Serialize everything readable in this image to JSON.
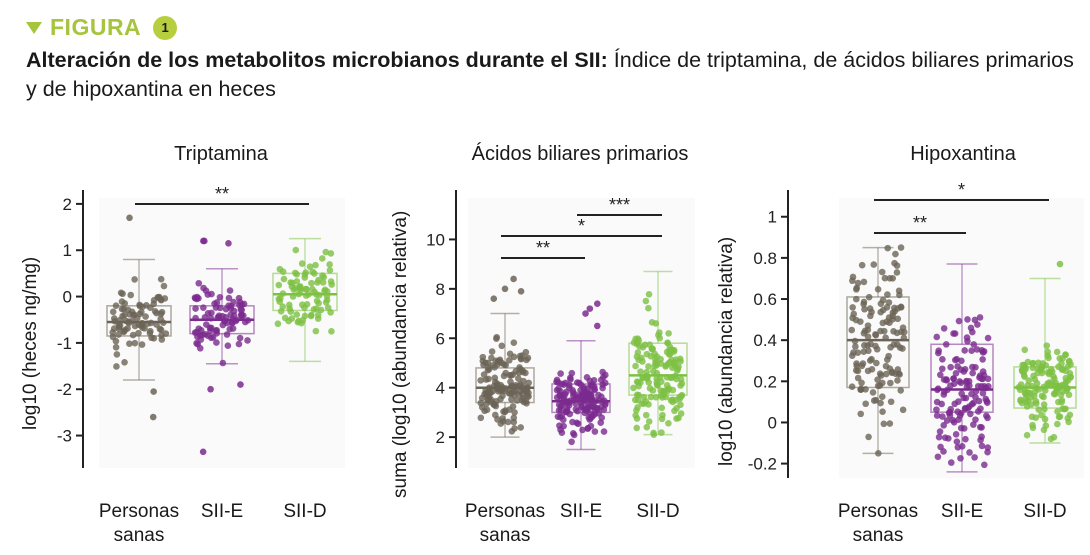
{
  "header": {
    "figure_label": "FIGURA",
    "figure_number": "1",
    "accent_color": "#a6c43c"
  },
  "caption": {
    "bold": "Alteración de los metabolitos microbianos durante el SII:",
    "rest": " Índice de triptamina, de ácidos biliares primarios y de hipoxantina en heces"
  },
  "colors": {
    "Personas sanas": "#6b6456",
    "SII-E": "#7b2a8e",
    "SII-D": "#7dc143"
  },
  "chart_data": [
    {
      "type": "box+strip",
      "title": "Triptamina",
      "ylabel": "log10 (heces ng/mg)",
      "ylim": [
        -3.7,
        2.3
      ],
      "yticks": [
        2,
        1,
        0,
        -1,
        -2,
        -3
      ],
      "categories": [
        "Personas sanas",
        "SII-E",
        "SII-D"
      ],
      "xlabels": [
        [
          "Personas",
          "sanas"
        ],
        [
          "SII-E"
        ],
        [
          "SII-D"
        ]
      ],
      "boxes": [
        {
          "q1": -0.85,
          "median": -0.55,
          "q3": -0.2,
          "whisker_low": -1.8,
          "whisker_high": 0.8,
          "outliers": [
            1.7,
            -2.05,
            -2.6
          ]
        },
        {
          "q1": -0.8,
          "median": -0.5,
          "q3": -0.2,
          "whisker_low": -1.45,
          "whisker_high": 0.6,
          "outliers": [
            1.2,
            1.2,
            1.15,
            -1.9,
            -2.0,
            -3.35
          ]
        },
        {
          "q1": -0.3,
          "median": 0.05,
          "q3": 0.5,
          "whisker_low": -1.4,
          "whisker_high": 1.25,
          "outliers": []
        }
      ],
      "significance": [
        {
          "from": 0,
          "to": 2,
          "label": "**"
        }
      ]
    },
    {
      "type": "box+strip",
      "title": "Ácidos biliares primarios",
      "ylabel": "suma (log10 (abundancia relativa)",
      "ylim": [
        0.75,
        12
      ],
      "yticks": [
        10,
        8,
        6,
        4,
        2
      ],
      "categories": [
        "Personas sanas",
        "SII-E",
        "SII-D"
      ],
      "xlabels": [
        [
          "Personas",
          "sanas"
        ],
        [
          "SII-E"
        ],
        [
          "SII-D"
        ]
      ],
      "boxes": [
        {
          "q1": 3.4,
          "median": 4.0,
          "q3": 4.8,
          "whisker_low": 2.0,
          "whisker_high": 7.0,
          "outliers": [
            7.6,
            8.0,
            8.4,
            7.9
          ]
        },
        {
          "q1": 3.0,
          "median": 3.45,
          "q3": 4.15,
          "whisker_low": 1.5,
          "whisker_high": 5.9,
          "outliers": [
            7.0,
            7.2,
            7.4,
            6.5
          ]
        },
        {
          "q1": 3.7,
          "median": 4.5,
          "q3": 5.8,
          "whisker_low": 2.1,
          "whisker_high": 8.7,
          "outliers": []
        }
      ],
      "significance": [
        {
          "from": 0,
          "to": 1,
          "label": "**"
        },
        {
          "from": 0,
          "to": 2,
          "label": "*"
        },
        {
          "from": 1,
          "to": 2,
          "label": "***"
        }
      ]
    },
    {
      "type": "box+strip",
      "title": "Hipoxantina",
      "ylabel": "log10 (abundancia relativa)",
      "ylim": [
        -0.27,
        1.13
      ],
      "yticks": [
        1,
        0.8,
        0.6,
        0.4,
        0.2,
        0,
        -0.2
      ],
      "categories": [
        "Personas sanas",
        "SII-E",
        "SII-D"
      ],
      "xlabels": [
        [
          "Personas",
          "sanas"
        ],
        [
          "SII-E"
        ],
        [
          "SII-D"
        ]
      ],
      "boxes": [
        {
          "q1": 0.17,
          "median": 0.4,
          "q3": 0.61,
          "whisker_low": -0.15,
          "whisker_high": 0.85,
          "outliers": []
        },
        {
          "q1": 0.05,
          "median": 0.16,
          "q3": 0.38,
          "whisker_low": -0.24,
          "whisker_high": 0.77,
          "outliers": []
        },
        {
          "q1": 0.07,
          "median": 0.17,
          "q3": 0.27,
          "whisker_low": -0.1,
          "whisker_high": 0.7,
          "outliers": [
            0.77
          ]
        }
      ],
      "significance": [
        {
          "from": 0,
          "to": 1,
          "label": "**"
        },
        {
          "from": 0,
          "to": 2,
          "label": "*"
        }
      ]
    }
  ]
}
